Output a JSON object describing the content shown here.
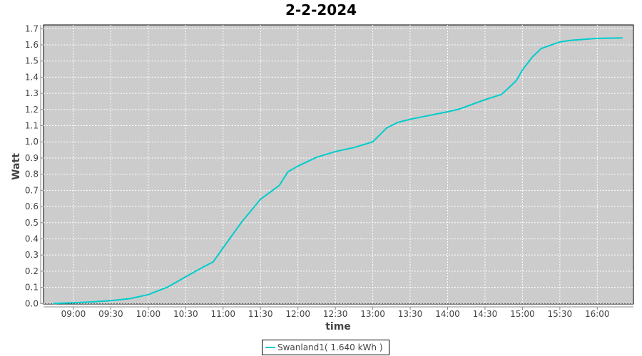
{
  "chart_data": {
    "type": "line",
    "title": "2-2-2024",
    "xlabel": "time",
    "ylabel": "Watt",
    "xlim": [
      "08:36",
      "16:29"
    ],
    "ylim": [
      0.0,
      1.72
    ],
    "x_ticks": [
      "09:00",
      "09:30",
      "10:00",
      "10:30",
      "11:00",
      "11:30",
      "12:00",
      "12:30",
      "13:00",
      "13:30",
      "14:00",
      "14:30",
      "15:00",
      "15:30",
      "16:00"
    ],
    "y_ticks": [
      "0.0",
      "0.1",
      "0.2",
      "0.3",
      "0.4",
      "0.5",
      "0.6",
      "0.7",
      "0.8",
      "0.9",
      "1.0",
      "1.1",
      "1.2",
      "1.3",
      "1.4",
      "1.5",
      "1.6",
      "1.7"
    ],
    "grid": true,
    "legend_position": "bottom",
    "colors": {
      "plot_background": "#cccccc",
      "gridline": "#ffffff",
      "series": "#00cccc"
    },
    "series": [
      {
        "name": "Swanland1( 1.640 kWh )",
        "x": [
          "08:44",
          "09:00",
          "09:15",
          "09:30",
          "09:45",
          "10:00",
          "10:15",
          "10:30",
          "10:45",
          "10:52",
          "11:00",
          "11:15",
          "11:30",
          "11:45",
          "11:52",
          "12:00",
          "12:15",
          "12:30",
          "12:45",
          "13:00",
          "13:11",
          "13:20",
          "13:30",
          "13:39",
          "14:00",
          "14:09",
          "14:30",
          "14:43",
          "14:47",
          "14:55",
          "15:00",
          "15:08",
          "15:15",
          "15:30",
          "15:39",
          "16:00",
          "16:20"
        ],
        "values": [
          0.0,
          0.005,
          0.01,
          0.018,
          0.03,
          0.055,
          0.1,
          0.165,
          0.23,
          0.257,
          0.345,
          0.505,
          0.645,
          0.73,
          0.815,
          0.85,
          0.905,
          0.94,
          0.965,
          1.0,
          1.085,
          1.12,
          1.14,
          1.154,
          1.186,
          1.202,
          1.261,
          1.293,
          1.32,
          1.378,
          1.445,
          1.525,
          1.577,
          1.618,
          1.628,
          1.64,
          1.643
        ]
      }
    ]
  }
}
